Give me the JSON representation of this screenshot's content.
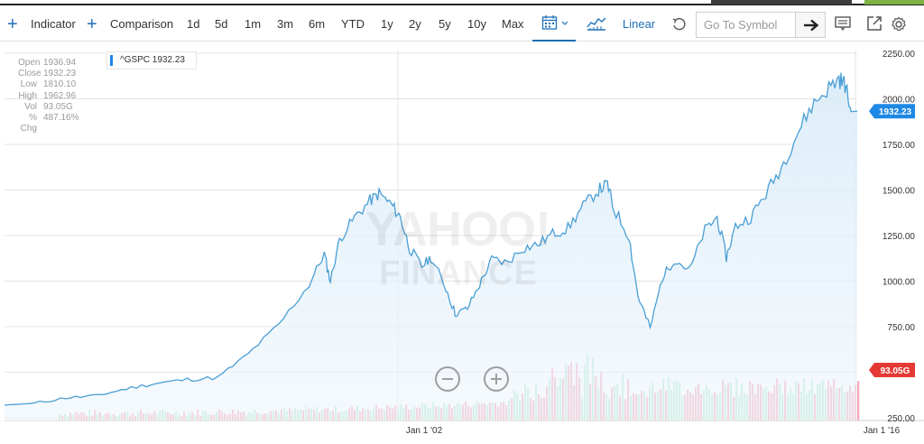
{
  "toolbar": {
    "indicator_label": "Indicator",
    "comparison_label": "Comparison",
    "ranges": [
      "1d",
      "5d",
      "1m",
      "3m",
      "6m",
      "YTD",
      "1y",
      "2y",
      "5y",
      "10y",
      "Max"
    ],
    "scale_label": "Linear",
    "search_placeholder": "Go To Symbol"
  },
  "tooltip": {
    "rows": [
      {
        "k": "Open",
        "v": "1936.94"
      },
      {
        "k": "Close",
        "v": "1932.23"
      },
      {
        "k": "Low",
        "v": "1810.10"
      },
      {
        "k": "High",
        "v": "1962.96"
      },
      {
        "k": "Vol",
        "v": "93.05G"
      },
      {
        "k": "% Chg",
        "v": "487.16%"
      }
    ]
  },
  "legend": {
    "label": "^GSPC 1932.23"
  },
  "watermark": {
    "line1": "YAHOO!",
    "line2": "FINANCE"
  },
  "price_badge": "1932.23",
  "volume_badge": "93.05G",
  "colors": {
    "accent": "#1e6fb8",
    "line": "#4a9fd5",
    "badge_price": "#1e88e5",
    "badge_volume": "#e53935",
    "vol_up": "#b9ead0",
    "vol_down": "#f6aab8"
  },
  "chart_data": {
    "type": "line",
    "y_ticks": [
      "2250.00",
      "2000.00",
      "1750.00",
      "1500.00",
      "1250.00",
      "1000.00",
      "750.00",
      "250.00"
    ],
    "x_ticks": [
      "Jan 1 '02",
      "Jan 1 '16"
    ],
    "ylim": [
      250,
      2250
    ],
    "grid": true,
    "series": [
      {
        "values": [
          [
            1988.0,
            320
          ],
          [
            1989.0,
            330
          ],
          [
            1990.0,
            360
          ],
          [
            1991.0,
            370
          ],
          [
            1992.0,
            410
          ],
          [
            1993.0,
            440
          ],
          [
            1994.0,
            460
          ],
          [
            1995.0,
            470
          ],
          [
            1996.0,
            600
          ],
          [
            1997.0,
            760
          ],
          [
            1998.0,
            980
          ],
          [
            1998.5,
            1150
          ],
          [
            1998.7,
            1000
          ],
          [
            1999.0,
            1230
          ],
          [
            1999.5,
            1350
          ],
          [
            2000.0,
            1440
          ],
          [
            2000.3,
            1480
          ],
          [
            2000.7,
            1420
          ],
          [
            2001.0,
            1350
          ],
          [
            2001.3,
            1180
          ],
          [
            2001.7,
            1080
          ],
          [
            2002.0,
            1130
          ],
          [
            2002.5,
            960
          ],
          [
            2002.8,
            820
          ],
          [
            2003.2,
            850
          ],
          [
            2003.6,
            980
          ],
          [
            2004.0,
            1120
          ],
          [
            2004.5,
            1100
          ],
          [
            2005.0,
            1180
          ],
          [
            2005.5,
            1200
          ],
          [
            2006.0,
            1260
          ],
          [
            2006.5,
            1290
          ],
          [
            2007.0,
            1410
          ],
          [
            2007.5,
            1500
          ],
          [
            2007.8,
            1530
          ],
          [
            2008.0,
            1400
          ],
          [
            2008.5,
            1250
          ],
          [
            2008.8,
            920
          ],
          [
            2009.2,
            740
          ],
          [
            2009.6,
            1020
          ],
          [
            2010.0,
            1120
          ],
          [
            2010.5,
            1060
          ],
          [
            2011.0,
            1280
          ],
          [
            2011.4,
            1350
          ],
          [
            2011.7,
            1130
          ],
          [
            2012.0,
            1300
          ],
          [
            2012.5,
            1350
          ],
          [
            2013.0,
            1480
          ],
          [
            2013.5,
            1620
          ],
          [
            2014.0,
            1800
          ],
          [
            2014.5,
            1960
          ],
          [
            2015.0,
            2050
          ],
          [
            2015.4,
            2110
          ],
          [
            2015.6,
            2080
          ],
          [
            2015.8,
            1930
          ],
          [
            2016.0,
            1932
          ]
        ]
      }
    ]
  }
}
